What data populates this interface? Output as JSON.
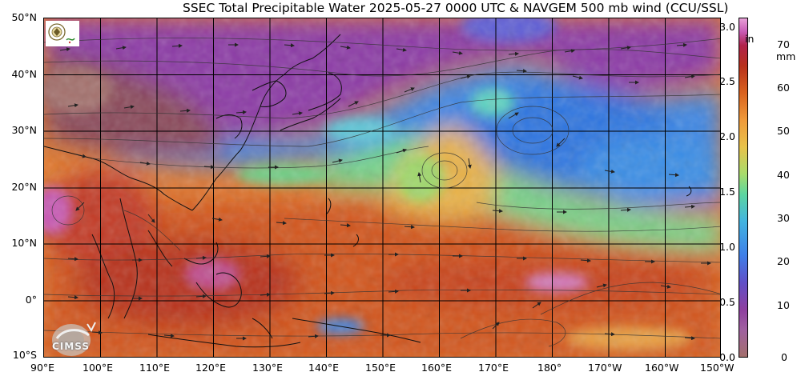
{
  "title": "SSEC Total Precipitable Water  2025-05-27 0000 UTC & NAVGEM 500 mb wind (CCU/SSL)",
  "lat_labels": [
    "50°N",
    "40°N",
    "30°N",
    "20°N",
    "10°N",
    "0°",
    "10°S"
  ],
  "lon_labels": [
    "90°E",
    "100°E",
    "110°E",
    "120°E",
    "130°E",
    "140°E",
    "150°E",
    "160°E",
    "170°E",
    "180°",
    "170°W",
    "160°W",
    "150°W"
  ],
  "colorbar": {
    "inch_unit": "in",
    "mm_unit": "mm",
    "inch_ticks": [
      "3.0",
      "2.5",
      "2.0",
      "1.5",
      "1.0",
      "0.5",
      "0.0"
    ],
    "mm_ticks": [
      "70",
      "60",
      "50",
      "40",
      "30",
      "20",
      "10",
      "0"
    ],
    "colors": [
      "#a36f6c",
      "#8e3fa0",
      "#b43fb3",
      "#3f7fe8",
      "#42b4e0",
      "#5cd6a0",
      "#a8dc6c",
      "#e8c24a",
      "#f09a3a",
      "#d9621e",
      "#b8301c",
      "#b0224a",
      "#c85ab4",
      "#e8a0d8"
    ]
  },
  "map": {
    "projection": "equirectangular",
    "lon_range": [
      "90°E",
      "150°W"
    ],
    "lat_range": [
      "10°S",
      "50°N"
    ]
  },
  "logos": {
    "top_left": "ssec-seal-icon",
    "bottom_left": "cimss-logo-icon",
    "bottom_left_text": "CIMSS"
  }
}
